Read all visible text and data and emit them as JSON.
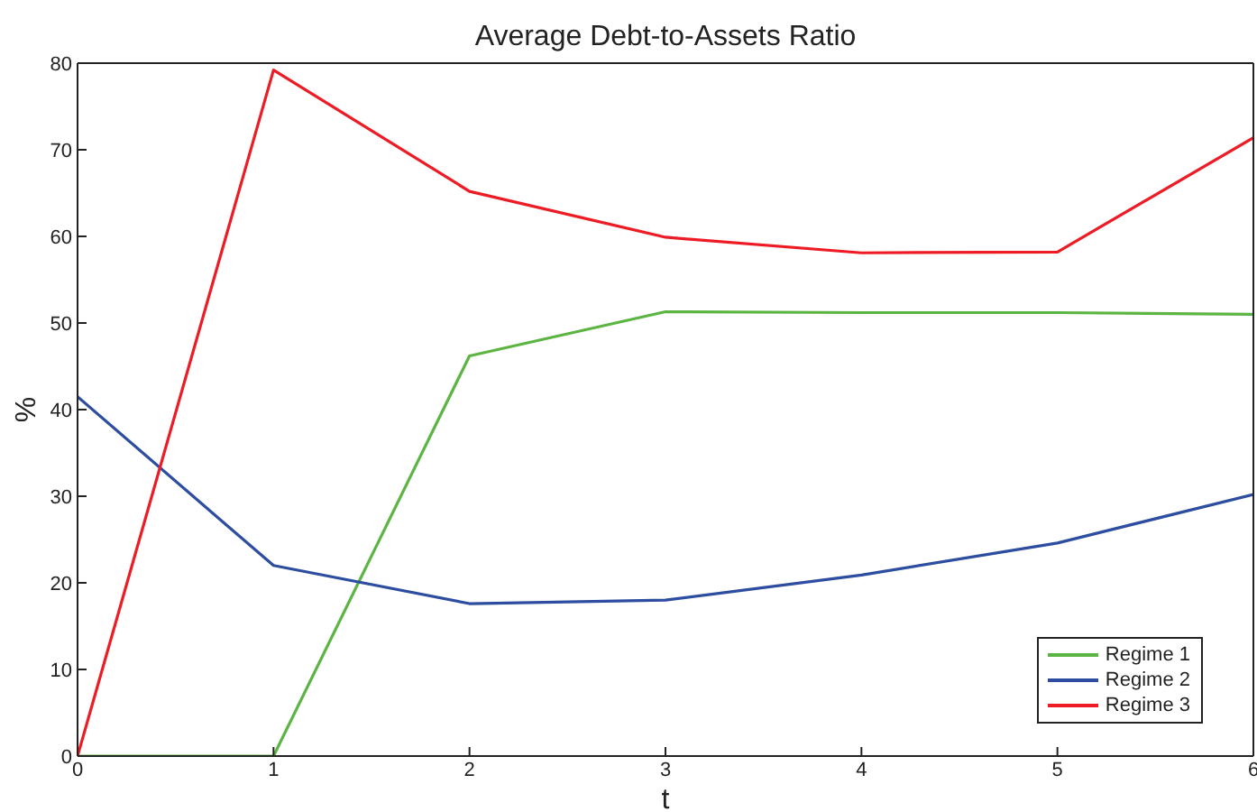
{
  "chart_data": {
    "type": "line",
    "title": "Average Debt-to-Assets Ratio",
    "xlabel": "t",
    "ylabel": "%",
    "x": [
      0,
      1,
      2,
      3,
      4,
      5,
      6
    ],
    "series": [
      {
        "name": "Regime 1",
        "color": "#5cb543",
        "values": [
          0,
          0,
          46.2,
          51.3,
          51.2,
          51.2,
          51.0
        ]
      },
      {
        "name": "Regime 2",
        "color": "#2d4da1",
        "values": [
          41.5,
          22.0,
          17.6,
          18.0,
          20.9,
          24.6,
          30.2
        ]
      },
      {
        "name": "Regime 3",
        "color": "#ed1c24",
        "values": [
          0,
          79.2,
          65.2,
          59.9,
          58.1,
          58.2,
          71.4
        ]
      }
    ],
    "xlim": [
      0,
      6
    ],
    "ylim": [
      0,
      80
    ],
    "xticks": [
      0,
      1,
      2,
      3,
      4,
      5,
      6
    ],
    "yticks": [
      0,
      10,
      20,
      30,
      40,
      50,
      60,
      70,
      80
    ],
    "legend": "bottom right"
  }
}
